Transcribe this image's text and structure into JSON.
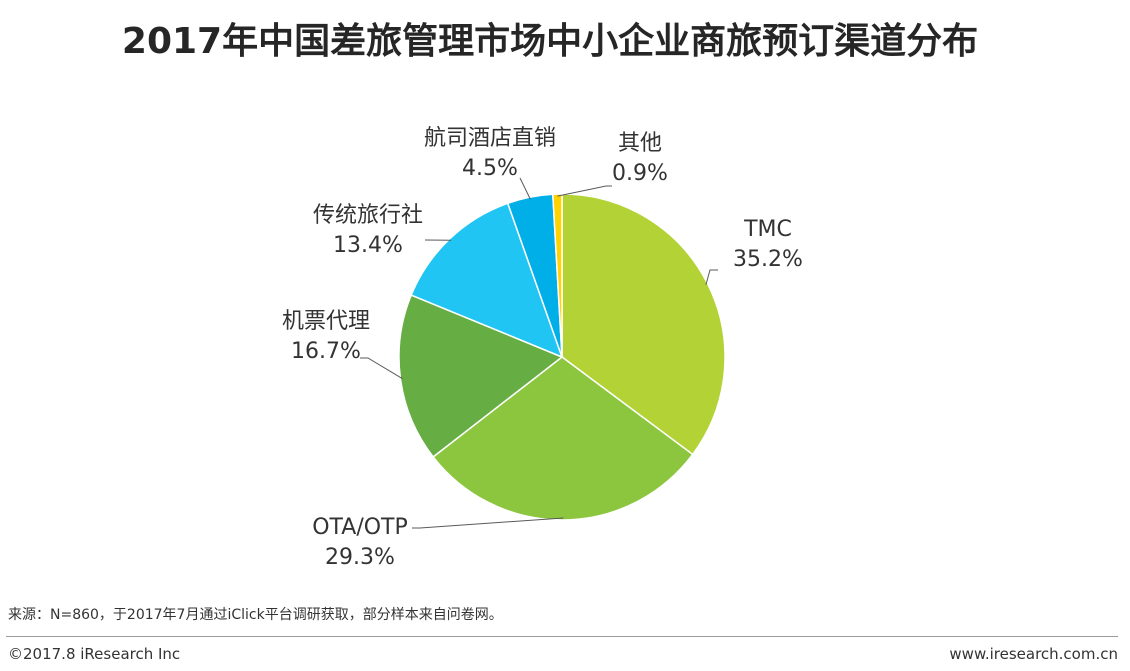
{
  "header": {
    "title": "2017年中国差旅管理市场中小企业商旅预订渠道分布"
  },
  "chart_data": {
    "type": "pie",
    "start_angle_deg": 0,
    "direction": "clockwise",
    "slices": [
      {
        "label": "TMC",
        "value": 35.2,
        "value_label": "35.2%",
        "color": "#b2d235"
      },
      {
        "label": "OTA/OTP",
        "value": 29.3,
        "value_label": "29.3%",
        "color": "#8cc63f"
      },
      {
        "label": "机票代理",
        "value": 16.7,
        "value_label": "16.7%",
        "color": "#66ad44"
      },
      {
        "label": "传统旅行社",
        "value": 13.4,
        "value_label": "13.4%",
        "color": "#21c5f3"
      },
      {
        "label": "航司酒店直销",
        "value": 4.5,
        "value_label": "4.5%",
        "color": "#00aee8"
      },
      {
        "label": "其他",
        "value": 0.9,
        "value_label": "0.9%",
        "color": "#ffd200"
      }
    ]
  },
  "footer": {
    "source": "来源：N=860，于2017年7月通过iClick平台调研获取，部分样本来自问卷网。",
    "copyright": "©2017.8 iResearch Inc",
    "website": "www.iresearch.com.cn"
  }
}
